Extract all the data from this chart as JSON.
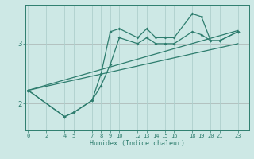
{
  "xlabel": "Humidex (Indice chaleur)",
  "bg_color": "#cde8e5",
  "line_color": "#2e7d6e",
  "grid_color": "#aecfcc",
  "red_line_color": "#d08080",
  "xticks": [
    0,
    2,
    4,
    5,
    7,
    8,
    9,
    10,
    12,
    13,
    14,
    15,
    16,
    18,
    19,
    20,
    21,
    23
  ],
  "yticks": [
    2,
    3
  ],
  "ylim": [
    1.55,
    3.65
  ],
  "xlim": [
    -0.3,
    24.2
  ],
  "line1_x": [
    0,
    4,
    5,
    7,
    8,
    9,
    10,
    12,
    13,
    14,
    15,
    16,
    18,
    19,
    20,
    21,
    23
  ],
  "line1_y": [
    2.22,
    1.78,
    1.85,
    2.05,
    2.5,
    3.2,
    3.25,
    3.1,
    3.25,
    3.1,
    3.1,
    3.1,
    3.5,
    3.45,
    3.05,
    3.05,
    3.2
  ],
  "line2_x": [
    0,
    4,
    5,
    7,
    8,
    9,
    10,
    12,
    13,
    14,
    15,
    16,
    18,
    19,
    20,
    21,
    23
  ],
  "line2_y": [
    2.22,
    1.78,
    1.85,
    2.05,
    2.3,
    2.65,
    3.1,
    3.0,
    3.1,
    3.0,
    3.0,
    3.0,
    3.2,
    3.15,
    3.05,
    3.05,
    3.2
  ],
  "line3_x": [
    0,
    23
  ],
  "line3_y": [
    2.22,
    3.22
  ],
  "line4_x": [
    0,
    23
  ],
  "line4_y": [
    2.22,
    3.0
  ]
}
